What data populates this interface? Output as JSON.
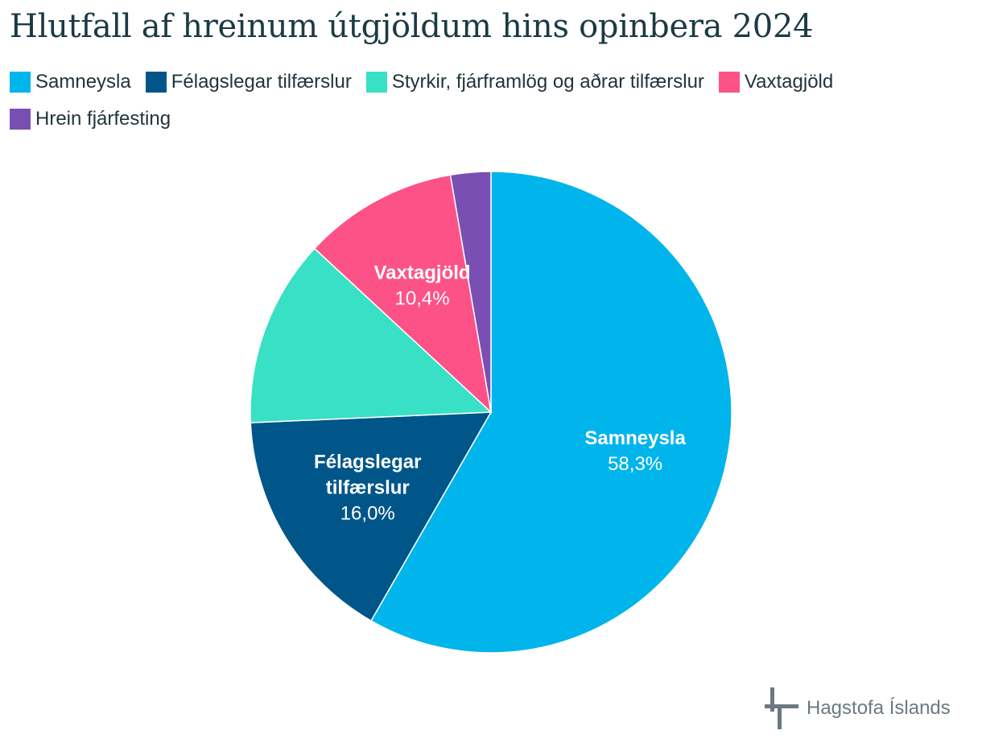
{
  "title": "Hlutfall af hreinum útgjöldum hins opinbera 2024",
  "chart_data": {
    "type": "pie",
    "title": "Hlutfall af hreinum útgjöldum hins opinbera 2024",
    "legend_position": "top-left",
    "start_angle_deg": 0,
    "direction": "clockwise",
    "slices": [
      {
        "name": "Samneysla",
        "value": 58.3,
        "color": "#00b4ec",
        "label_lines": [
          "Samneysla"
        ],
        "value_label": "58,3%"
      },
      {
        "name": "Félagslegar tilfærslur",
        "value": 16.0,
        "color": "#005689",
        "label_lines": [
          "Félagslegar",
          "tilfærslur"
        ],
        "value_label": "16,0%"
      },
      {
        "name": "Styrkir, fjárframlög og aðrar tilfærslur",
        "value": 12.6,
        "color": "#38e0c6",
        "label_lines": [],
        "value_label": ""
      },
      {
        "name": "Vaxtagjöld",
        "value": 10.4,
        "color": "#fd5287",
        "label_lines": [
          "Vaxtagjöld"
        ],
        "value_label": "10,4%"
      },
      {
        "name": "Hrein fjárfesting",
        "value": 2.7,
        "color": "#7a4fb3",
        "label_lines": [],
        "value_label": ""
      }
    ]
  },
  "logo": {
    "text": "Hagstofa Íslands",
    "color": "#6b7a80"
  }
}
